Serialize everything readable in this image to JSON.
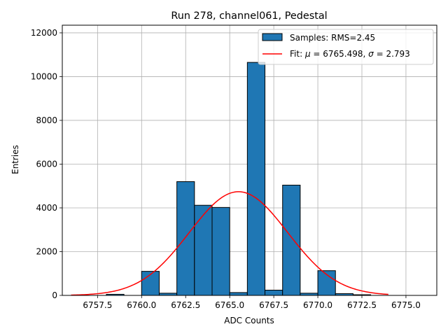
{
  "chart_data": {
    "type": "bar",
    "title": "Run 278, channel061, Pedestal",
    "xlabel": "ADC Counts",
    "ylabel": "Entries",
    "xlim": [
      6755.5,
      6776.75
    ],
    "ylim": [
      0,
      12350
    ],
    "grid": true,
    "xticks": [
      6757.5,
      6760.0,
      6762.5,
      6765.0,
      6767.5,
      6770.0,
      6772.5,
      6775.0
    ],
    "xtick_labels": [
      "6757.5",
      "6760.0",
      "6762.5",
      "6765.0",
      "6767.5",
      "6770.0",
      "6772.5",
      "6775.0"
    ],
    "yticks": [
      0,
      2000,
      4000,
      6000,
      8000,
      10000,
      12000
    ],
    "ytick_labels": [
      "0",
      "2000",
      "4000",
      "6000",
      "8000",
      "10000",
      "12000"
    ],
    "legend_position": "top-right",
    "series": [
      {
        "name": "Samples: RMS=2.45",
        "kind": "histogram",
        "color": "#1f77b4",
        "edgecolor": "#000000",
        "bin_width": 1.0,
        "bins": [
          {
            "x": 6758.5,
            "value": 50
          },
          {
            "x": 6760.5,
            "value": 1100
          },
          {
            "x": 6761.5,
            "value": 100
          },
          {
            "x": 6762.5,
            "value": 5200
          },
          {
            "x": 6763.5,
            "value": 4120
          },
          {
            "x": 6764.5,
            "value": 4020
          },
          {
            "x": 6765.5,
            "value": 130
          },
          {
            "x": 6766.5,
            "value": 10650
          },
          {
            "x": 6767.5,
            "value": 240
          },
          {
            "x": 6768.5,
            "value": 5040
          },
          {
            "x": 6769.5,
            "value": 100
          },
          {
            "x": 6770.5,
            "value": 1130
          },
          {
            "x": 6771.5,
            "value": 80
          },
          {
            "x": 6772.5,
            "value": 30
          }
        ]
      },
      {
        "name": "Fit: μ = 6765.498, σ = 2.793",
        "legend_prefix": "Fit: ",
        "legend_mu_sym": "μ",
        "legend_mu_val": " = 6765.498, ",
        "legend_sigma_sym": "σ",
        "legend_sigma_val": " = 2.793",
        "kind": "gaussian",
        "color": "#ff0000",
        "mu": 6765.498,
        "sigma": 2.793,
        "amplitude": 4740,
        "x_range": [
          6756.0,
          6774.0
        ]
      }
    ]
  }
}
